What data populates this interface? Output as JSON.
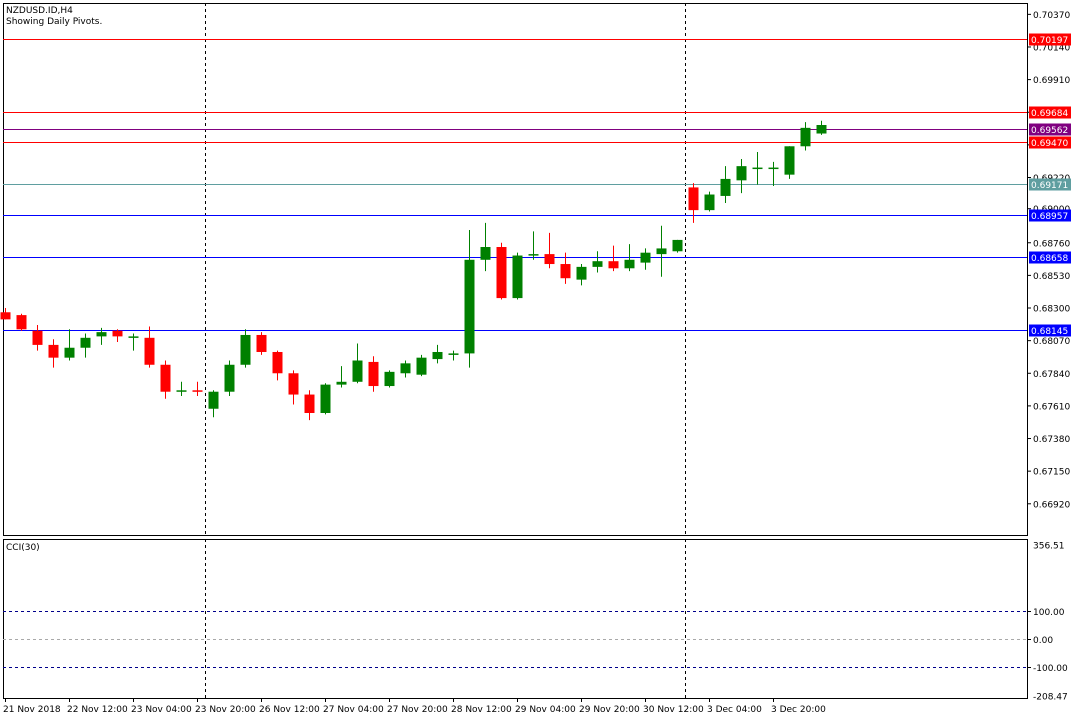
{
  "chart_data": {
    "type": "candlestick",
    "symbol_label": "NZDUSD.ID,H4",
    "subtitle": "Showing Daily Pivots.",
    "colors": {
      "bull": "#008000",
      "bear": "#ff0000",
      "grid": "#000000"
    },
    "price_axis": {
      "range": [
        0.667,
        0.7045
      ],
      "ticks": [
        "0.70370",
        "0.70140",
        "0.69910",
        "0.69680",
        "0.69450",
        "0.69220",
        "0.69000",
        "0.68760",
        "0.68530",
        "0.68300",
        "0.68070",
        "0.67840",
        "0.67610",
        "0.67380",
        "0.67150",
        "0.66920"
      ]
    },
    "pivot_levels": [
      {
        "value": "0.70197",
        "color": "#ff0000"
      },
      {
        "value": "0.69684",
        "color": "#ff0000"
      },
      {
        "value": "0.69562",
        "color": "#800080"
      },
      {
        "value": "0.69470",
        "color": "#ff0000"
      },
      {
        "value": "0.69171",
        "color": "#5f9ea0"
      },
      {
        "value": "0.68957",
        "color": "#0000ff"
      },
      {
        "value": "0.68658",
        "color": "#0000ff"
      },
      {
        "value": "0.68145",
        "color": "#0000ff"
      }
    ],
    "candles": [
      {
        "o": 0.6827,
        "h": 0.683,
        "l": 0.6822,
        "c": 0.6822
      },
      {
        "o": 0.6825,
        "h": 0.6826,
        "l": 0.6814,
        "c": 0.6815
      },
      {
        "o": 0.6814,
        "h": 0.6818,
        "l": 0.68,
        "c": 0.6804
      },
      {
        "o": 0.6804,
        "h": 0.6808,
        "l": 0.6788,
        "c": 0.6795
      },
      {
        "o": 0.6795,
        "h": 0.6815,
        "l": 0.6793,
        "c": 0.6802
      },
      {
        "o": 0.6802,
        "h": 0.6812,
        "l": 0.6795,
        "c": 0.6809
      },
      {
        "o": 0.681,
        "h": 0.6816,
        "l": 0.6804,
        "c": 0.6813
      },
      {
        "o": 0.6814,
        "h": 0.6815,
        "l": 0.6806,
        "c": 0.681
      },
      {
        "o": 0.6809,
        "h": 0.6812,
        "l": 0.68,
        "c": 0.681
      },
      {
        "o": 0.6809,
        "h": 0.6817,
        "l": 0.6788,
        "c": 0.679
      },
      {
        "o": 0.679,
        "h": 0.6793,
        "l": 0.6766,
        "c": 0.6771
      },
      {
        "o": 0.6771,
        "h": 0.6778,
        "l": 0.6768,
        "c": 0.6772
      },
      {
        "o": 0.6772,
        "h": 0.6778,
        "l": 0.6768,
        "c": 0.6771
      },
      {
        "o": 0.6759,
        "h": 0.6772,
        "l": 0.6753,
        "c": 0.6771
      },
      {
        "o": 0.6771,
        "h": 0.6793,
        "l": 0.6768,
        "c": 0.679
      },
      {
        "o": 0.679,
        "h": 0.6815,
        "l": 0.6788,
        "c": 0.6811
      },
      {
        "o": 0.6811,
        "h": 0.6813,
        "l": 0.6797,
        "c": 0.6799
      },
      {
        "o": 0.6799,
        "h": 0.68,
        "l": 0.6779,
        "c": 0.6784
      },
      {
        "o": 0.6784,
        "h": 0.6786,
        "l": 0.6762,
        "c": 0.6769
      },
      {
        "o": 0.6769,
        "h": 0.6772,
        "l": 0.6751,
        "c": 0.6756
      },
      {
        "o": 0.6756,
        "h": 0.6777,
        "l": 0.6755,
        "c": 0.6776
      },
      {
        "o": 0.6776,
        "h": 0.6789,
        "l": 0.6774,
        "c": 0.6778
      },
      {
        "o": 0.6778,
        "h": 0.6805,
        "l": 0.6777,
        "c": 0.6793
      },
      {
        "o": 0.6792,
        "h": 0.6796,
        "l": 0.6771,
        "c": 0.6775
      },
      {
        "o": 0.6775,
        "h": 0.6786,
        "l": 0.6774,
        "c": 0.6785
      },
      {
        "o": 0.6784,
        "h": 0.6793,
        "l": 0.6781,
        "c": 0.6791
      },
      {
        "o": 0.6783,
        "h": 0.6797,
        "l": 0.6782,
        "c": 0.6795
      },
      {
        "o": 0.6794,
        "h": 0.6804,
        "l": 0.6791,
        "c": 0.6799
      },
      {
        "o": 0.6797,
        "h": 0.68,
        "l": 0.6793,
        "c": 0.6798
      },
      {
        "o": 0.6798,
        "h": 0.6885,
        "l": 0.6788,
        "c": 0.6864
      },
      {
        "o": 0.6864,
        "h": 0.689,
        "l": 0.6856,
        "c": 0.6873
      },
      {
        "o": 0.6873,
        "h": 0.6876,
        "l": 0.6836,
        "c": 0.6837
      },
      {
        "o": 0.6837,
        "h": 0.6869,
        "l": 0.6836,
        "c": 0.6867
      },
      {
        "o": 0.6867,
        "h": 0.6884,
        "l": 0.6864,
        "c": 0.6868
      },
      {
        "o": 0.6868,
        "h": 0.6883,
        "l": 0.6858,
        "c": 0.6861
      },
      {
        "o": 0.6861,
        "h": 0.6869,
        "l": 0.6847,
        "c": 0.6851
      },
      {
        "o": 0.685,
        "h": 0.6861,
        "l": 0.6846,
        "c": 0.6859
      },
      {
        "o": 0.6859,
        "h": 0.687,
        "l": 0.6855,
        "c": 0.6863
      },
      {
        "o": 0.6863,
        "h": 0.6874,
        "l": 0.6856,
        "c": 0.6858
      },
      {
        "o": 0.6858,
        "h": 0.6875,
        "l": 0.6856,
        "c": 0.6864
      },
      {
        "o": 0.6862,
        "h": 0.6872,
        "l": 0.6857,
        "c": 0.6869
      },
      {
        "o": 0.6868,
        "h": 0.6888,
        "l": 0.6852,
        "c": 0.6872
      },
      {
        "o": 0.687,
        "h": 0.6878,
        "l": 0.6869,
        "c": 0.6878
      },
      {
        "o": 0.6915,
        "h": 0.6918,
        "l": 0.689,
        "c": 0.6899
      },
      {
        "o": 0.6899,
        "h": 0.6912,
        "l": 0.6898,
        "c": 0.691
      },
      {
        "o": 0.6909,
        "h": 0.693,
        "l": 0.6904,
        "c": 0.6921
      },
      {
        "o": 0.692,
        "h": 0.6935,
        "l": 0.6911,
        "c": 0.693
      },
      {
        "o": 0.6928,
        "h": 0.694,
        "l": 0.6917,
        "c": 0.6929
      },
      {
        "o": 0.6928,
        "h": 0.6933,
        "l": 0.6916,
        "c": 0.6929
      },
      {
        "o": 0.6924,
        "h": 0.6944,
        "l": 0.6921,
        "c": 0.6944
      },
      {
        "o": 0.6944,
        "h": 0.6961,
        "l": 0.6941,
        "c": 0.6957
      },
      {
        "o": 0.6953,
        "h": 0.6962,
        "l": 0.6952,
        "c": 0.6959
      }
    ],
    "x_axis_labels": [
      "21 Nov 2018",
      "22 Nov 12:00",
      "23 Nov 04:00",
      "23 Nov 20:00",
      "26 Nov 12:00",
      "27 Nov 04:00",
      "27 Nov 20:00",
      "28 Nov 12:00",
      "29 Nov 04:00",
      "29 Nov 20:00",
      "30 Nov 12:00",
      "3 Dec 04:00",
      "3 Dec 20:00"
    ],
    "separators_after_index": [
      12,
      42
    ],
    "indicator": {
      "name": "CCI(30)",
      "range": [
        -208.47,
        356.51
      ],
      "levels": [
        "100.00",
        "0.00",
        "-100.00"
      ],
      "axis_extremes": [
        "356.51",
        "-208.47"
      ]
    }
  }
}
